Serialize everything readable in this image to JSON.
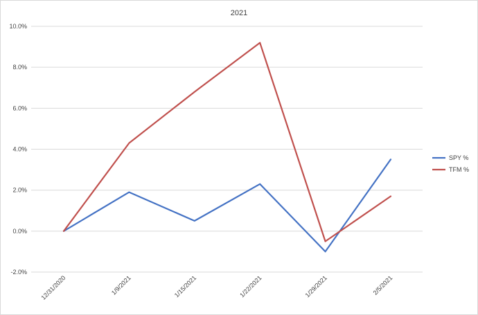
{
  "chart_data": {
    "type": "line",
    "title": "2021",
    "xlabel": "",
    "ylabel": "",
    "categories": [
      "12/31/2020",
      "1/9/2021",
      "1/15/2021",
      "1/22/2021",
      "1/29/2021",
      "2/5/2021"
    ],
    "series": [
      {
        "name": "SPY %",
        "color": "#4472c4",
        "values": [
          0.0,
          1.9,
          0.5,
          2.3,
          -1.0,
          3.5
        ]
      },
      {
        "name": "TFM %",
        "color": "#c0504d",
        "values": [
          0.0,
          4.3,
          6.8,
          9.2,
          -0.5,
          1.7
        ]
      }
    ],
    "ylim": [
      -2.0,
      10.0
    ],
    "yticks": [
      -2.0,
      0.0,
      2.0,
      4.0,
      6.0,
      8.0,
      10.0
    ],
    "ytick_labels": [
      "-2.0%",
      "0.0%",
      "2.0%",
      "4.0%",
      "6.0%",
      "8.0%",
      "10.0%"
    ],
    "grid": true,
    "legend_position": "right"
  }
}
